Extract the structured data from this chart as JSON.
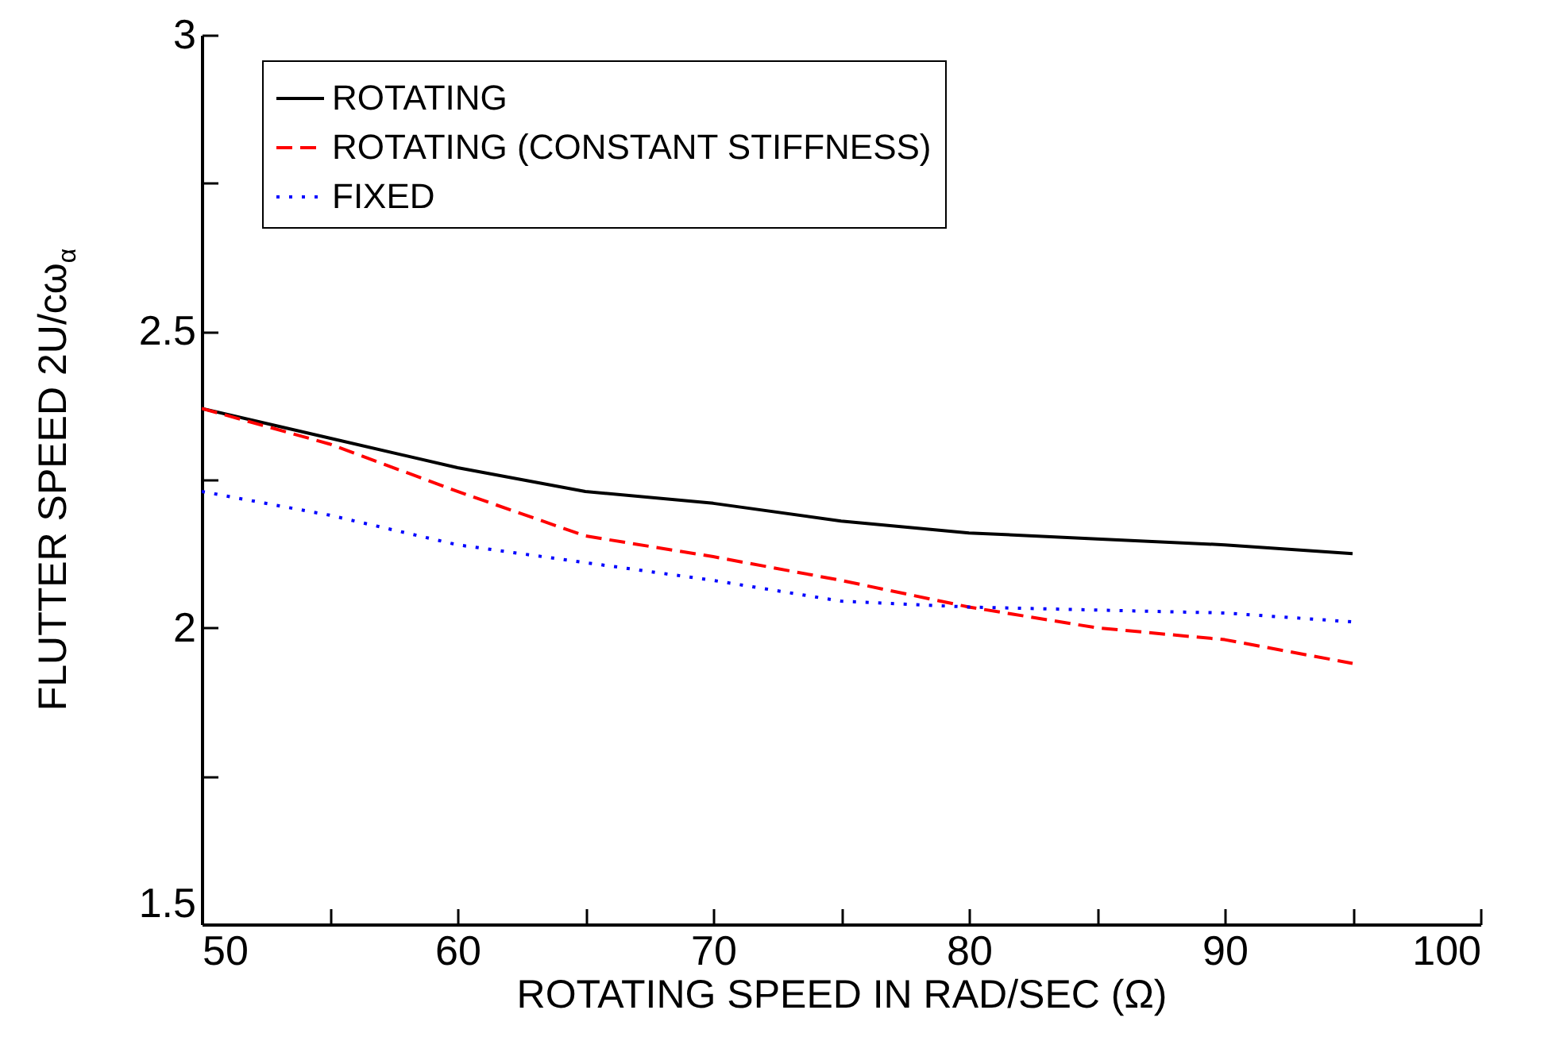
{
  "chart_data": {
    "type": "line",
    "xlabel": "ROTATING SPEED IN RAD/SEC (Ω)",
    "ylabel": "FLUTTER SPEED 2U/cω$_{α}$",
    "x": [
      50,
      55,
      60,
      65,
      70,
      75,
      80,
      85,
      90,
      95
    ],
    "series": [
      {
        "name": "ROTATING",
        "color": "#000000",
        "line_style": "solid",
        "values": [
          2.37,
          2.32,
          2.27,
          2.23,
          2.21,
          2.18,
          2.16,
          2.15,
          2.14,
          2.125
        ]
      },
      {
        "name": "ROTATING (CONSTANT STIFFNESS)",
        "color": "#ff0000",
        "line_style": "dashed",
        "values": [
          2.37,
          2.31,
          2.23,
          2.155,
          2.12,
          2.08,
          2.035,
          2.0,
          1.98,
          1.94
        ]
      },
      {
        "name": "FIXED",
        "color": "#0000ff",
        "line_style": "dotted",
        "values": [
          2.23,
          2.19,
          2.14,
          2.11,
          2.08,
          2.045,
          2.035,
          2.03,
          2.025,
          2.01
        ]
      }
    ],
    "xlim": [
      50,
      100
    ],
    "xticks": [
      50,
      {
        "value": 55,
        "label": null
      },
      60,
      {
        "value": 65,
        "label": null
      },
      70,
      {
        "value": 75,
        "label": null
      },
      80,
      {
        "value": 85,
        "label": null
      },
      90,
      {
        "value": 95,
        "label": null
      },
      100
    ],
    "ylim": [
      1.5,
      3
    ],
    "yticks": [
      1.5,
      {
        "value": 1.75,
        "label": null
      },
      2,
      {
        "value": 2.25,
        "label": null
      },
      2.5,
      {
        "value": 2.75,
        "label": null
      },
      3
    ],
    "grid": false,
    "legend": "top left",
    "marker": "none"
  }
}
